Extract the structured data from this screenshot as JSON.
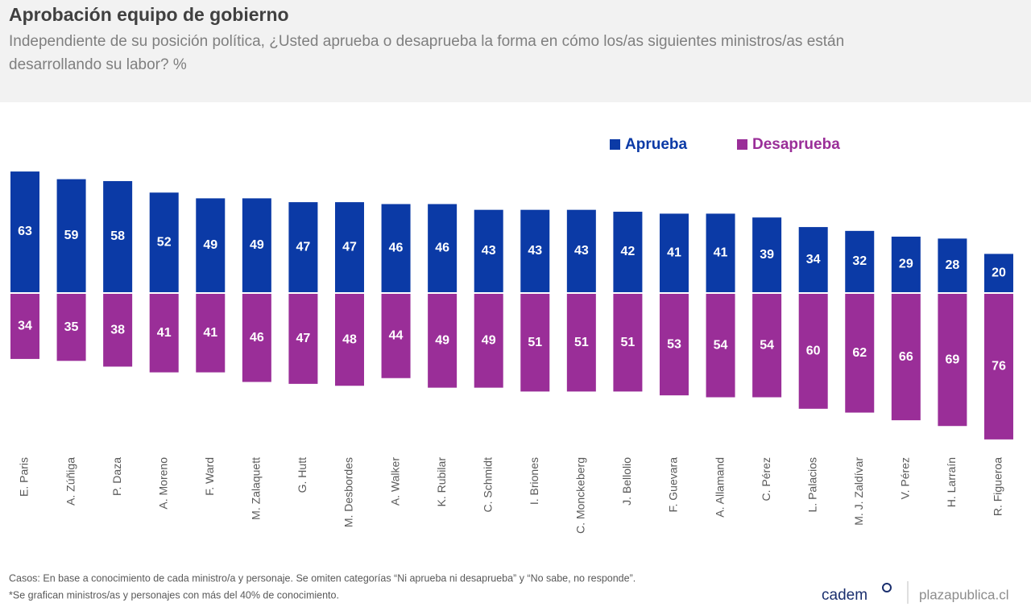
{
  "chart_data": {
    "type": "diverging_bar",
    "title": "Aprobación equipo de gobierno",
    "subtitle": [
      "Independiente de su posición política, ¿Usted aprueba o desaprueba la forma en cómo los/as siguientes ministros/as están",
      "desarrollando su labor? %"
    ],
    "categories": [
      "E. Paris",
      "A. Zúñiga",
      "P. Daza",
      "A. Moreno",
      "F. Ward",
      "M. Zalaquett",
      "G. Hutt",
      "M. Desbordes",
      "A. Walker",
      "K. Rubilar",
      "C. Schmidt",
      "I. Briones",
      "C. Monckeberg",
      "J. Bellolio",
      "F. Guevara",
      "A. Allamand",
      "C. Pérez",
      "L. Palacios",
      "M. J. Zaldívar",
      "V. Pérez",
      "H. Larraín",
      "R. Figueroa"
    ],
    "series": [
      {
        "name": "Aprueba",
        "color": "#0b3aa6",
        "values": [
          63,
          59,
          58,
          52,
          49,
          49,
          47,
          47,
          46,
          46,
          43,
          43,
          43,
          42,
          41,
          41,
          39,
          34,
          32,
          29,
          28,
          20
        ]
      },
      {
        "name": "Desaprueba",
        "color": "#9a2e98",
        "values": [
          34,
          35,
          38,
          41,
          41,
          46,
          47,
          48,
          44,
          49,
          49,
          51,
          51,
          51,
          53,
          54,
          54,
          60,
          62,
          66,
          69,
          76
        ]
      }
    ],
    "notes": [
      "Casos: En base a conocimiento de cada ministro/a y personaje. Se omiten categorías “Ni aprueba ni desaprueba” y “No sabe, no responde”.",
      "*Se grafican ministros/as y personajes con más del 40% de conocimiento."
    ]
  },
  "footer": {
    "brand": "cadem",
    "site": "plazapublica.cl"
  }
}
